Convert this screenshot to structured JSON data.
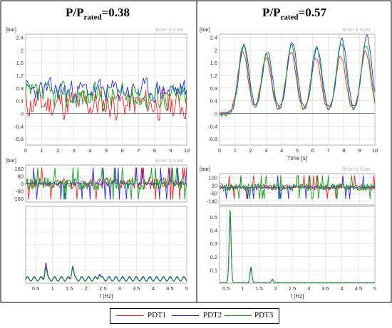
{
  "panel_titles": [
    {
      "base": "P/P",
      "sub": "rated",
      "value": "=0.38"
    },
    {
      "base": "P/P",
      "sub": "rated",
      "value": "=0.57"
    }
  ],
  "watermark": "Brüel & Kjær",
  "legend": [
    {
      "label": "PDT1",
      "color": "#e8262a"
    },
    {
      "label": "PDT2",
      "color": "#2b2be8"
    },
    {
      "label": "PDT3",
      "color": "#12a01e"
    }
  ],
  "chart_data": [
    {
      "type": "line",
      "panel": "P/Prated=0.38",
      "title": "",
      "ylabel": "[bar]",
      "xlabel": "",
      "xlim": [
        0,
        10
      ],
      "ylim": [
        -1.0,
        2.5
      ],
      "xticks": [
        "0",
        "1",
        "2",
        "3",
        "4",
        "5",
        "6",
        "7",
        "8",
        "9",
        "10"
      ],
      "yticks": [
        "2.4",
        "2",
        "1.6",
        "1.2",
        "0.8",
        "0.4",
        "0",
        "-0.4",
        "-0.8"
      ],
      "grid": true,
      "series": [
        {
          "name": "PDT1",
          "samples": 130,
          "mean": 0.3,
          "noise_amp": 0.45,
          "seed": 11
        },
        {
          "name": "PDT2",
          "samples": 130,
          "mean": 0.72,
          "noise_amp": 0.32,
          "seed": 23
        },
        {
          "name": "PDT3",
          "samples": 130,
          "mean": 0.55,
          "noise_amp": 0.38,
          "seed": 37
        }
      ]
    },
    {
      "type": "line",
      "panel": "P/Prated=0.57",
      "title": "",
      "ylabel": "[bar]",
      "xlabel": "Time  [s]",
      "xlim": [
        0,
        10
      ],
      "ylim": [
        -1.0,
        2.5
      ],
      "xticks": [
        "0",
        "1",
        "2",
        "3",
        "4",
        "5",
        "6",
        "7",
        "8",
        "9",
        "10"
      ],
      "yticks": [
        "2.4",
        "2",
        "1.6",
        "1.2",
        "0.8",
        "0.4",
        "0",
        "-0.4",
        "-0.8"
      ],
      "grid": true,
      "peak_times": [
        1.5,
        3.0,
        4.6,
        6.2,
        7.8,
        9.4
      ],
      "series": [
        {
          "name": "PDT1",
          "peaks": [
            1.95,
            1.75,
            1.95,
            1.75,
            1.8,
            1.95
          ],
          "baseline": 0.0,
          "phase": 0.0
        },
        {
          "name": "PDT2",
          "peaks": [
            2.15,
            1.95,
            2.25,
            2.05,
            2.35,
            2.45
          ],
          "baseline": 0.0,
          "phase": 0.08
        },
        {
          "name": "PDT3",
          "peaks": [
            2.2,
            1.9,
            2.2,
            2.15,
            2.25,
            2.2
          ],
          "baseline": -0.05,
          "phase": 0.03
        }
      ]
    },
    {
      "type": "line",
      "panel": "P/Prated=0.38",
      "title": "",
      "ylabel": "[bar]",
      "xlabel": "",
      "xlim": [
        0,
        5
      ],
      "ylim": [
        -200,
        200
      ],
      "yticks": [
        "160",
        "80",
        "0",
        "-80",
        "-160"
      ],
      "grid": true,
      "series": [
        {
          "name": "PDT1",
          "seed": 5,
          "amp": 60
        },
        {
          "name": "PDT2",
          "seed": 9,
          "amp": 20
        },
        {
          "name": "PDT3",
          "seed": 13,
          "amp": 70
        }
      ]
    },
    {
      "type": "line",
      "panel": "P/Prated=0.57",
      "title": "",
      "ylabel": "[bar]",
      "xlabel": "",
      "xlim": [
        0,
        5
      ],
      "ylim": [
        -180,
        140
      ],
      "yticks": [
        "100",
        "20",
        "-60",
        "-140"
      ],
      "grid": true,
      "series": [
        {
          "name": "PDT1",
          "seed": 7,
          "amp": 30
        },
        {
          "name": "PDT2",
          "seed": 19,
          "amp": 15
        },
        {
          "name": "PDT3",
          "seed": 29,
          "amp": 40
        }
      ]
    },
    {
      "type": "line",
      "panel": "P/Prated=0.38",
      "title": "",
      "ylabel": "",
      "xlabel": "f  [Hz]",
      "xlim": [
        0.2,
        5
      ],
      "ylim": [
        0,
        0.6
      ],
      "xticks": [
        "0.5",
        "1",
        "1.5",
        "2",
        "2.5",
        "3",
        "3.5",
        "4",
        "4.5",
        "5"
      ],
      "yticks": [],
      "grid": true,
      "series": [
        {
          "name": "PDT1",
          "base": 0.03,
          "peaks": [
            [
              0.8,
              0.1
            ],
            [
              1.6,
              0.1
            ],
            [
              2.4,
              0.04
            ]
          ]
        },
        {
          "name": "PDT2",
          "base": 0.035,
          "peaks": [
            [
              0.8,
              0.13
            ],
            [
              1.6,
              0.11
            ],
            [
              2.4,
              0.05
            ]
          ]
        },
        {
          "name": "PDT3",
          "base": 0.03,
          "peaks": [
            [
              0.8,
              0.09
            ],
            [
              1.6,
              0.1
            ],
            [
              2.4,
              0.04
            ]
          ]
        }
      ]
    },
    {
      "type": "line",
      "panel": "P/Prated=0.57",
      "title": "",
      "ylabel": "",
      "xlabel": "f  [Hz]",
      "xlim": [
        0.3,
        5
      ],
      "ylim": [
        0,
        0.58
      ],
      "xticks": [
        "0.5",
        "1",
        "1.5",
        "2",
        "2.5",
        "3",
        "3.5",
        "4",
        "4.5",
        "5"
      ],
      "yticks": [
        "0.5",
        "0.4",
        "0.3",
        "0.2",
        "0.1"
      ],
      "grid": true,
      "series": [
        {
          "name": "PDT1",
          "base": 0.004,
          "peaks": [
            [
              0.62,
              0.52
            ],
            [
              1.25,
              0.11
            ],
            [
              1.9,
              0.02
            ]
          ]
        },
        {
          "name": "PDT2",
          "base": 0.004,
          "peaks": [
            [
              0.62,
              0.5
            ],
            [
              1.25,
              0.1
            ],
            [
              1.9,
              0.02
            ]
          ]
        },
        {
          "name": "PDT3",
          "base": 0.004,
          "peaks": [
            [
              0.62,
              0.56
            ],
            [
              1.25,
              0.12
            ],
            [
              1.9,
              0.025
            ]
          ]
        }
      ]
    }
  ]
}
